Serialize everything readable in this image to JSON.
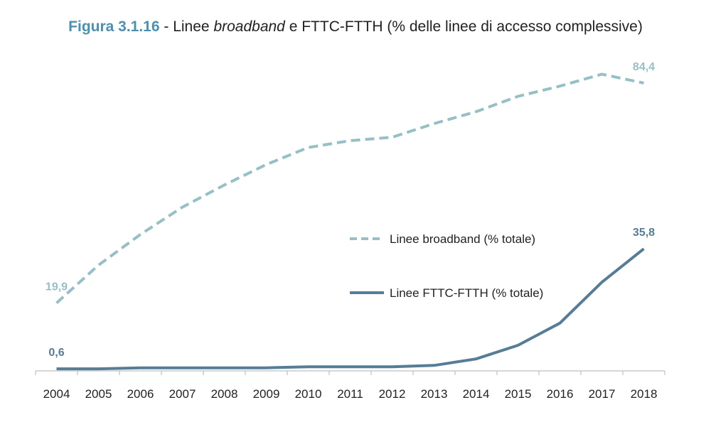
{
  "title": {
    "prefix": "Figura 3.1.16",
    "sep": " - Linee ",
    "italic": "broadband",
    "rest": " e FTTC-FTTH (% delle linee di accesso complessive)"
  },
  "colors": {
    "broadband": "#96bfc6",
    "fttc": "#557d97"
  },
  "chart_data": {
    "type": "line",
    "categories": [
      "2004",
      "2005",
      "2006",
      "2007",
      "2008",
      "2009",
      "2010",
      "2011",
      "2012",
      "2013",
      "2014",
      "2015",
      "2016",
      "2017",
      "2018"
    ],
    "ylim": [
      0,
      90
    ],
    "grid": false,
    "legend_position": "center-right",
    "series": [
      {
        "name": "Linee broadband (% totale)",
        "style": "dashed",
        "values": [
          19.9,
          31.0,
          40.0,
          48.0,
          54.5,
          60.5,
          65.5,
          67.5,
          68.5,
          72.5,
          76.0,
          80.5,
          83.5,
          87.0,
          84.4
        ],
        "labels": [
          {
            "index": 0,
            "text": "19,9"
          },
          {
            "index": 14,
            "text": "84,4"
          }
        ]
      },
      {
        "name": "Linee FTTC-FTTH (% totale)",
        "style": "solid",
        "values": [
          0.6,
          0.6,
          0.9,
          0.9,
          0.9,
          0.9,
          1.2,
          1.2,
          1.2,
          1.6,
          3.5,
          7.5,
          14.0,
          26.0,
          35.8
        ],
        "labels": [
          {
            "index": 0,
            "text": "0,6"
          },
          {
            "index": 14,
            "text": "35,8"
          }
        ]
      }
    ]
  }
}
